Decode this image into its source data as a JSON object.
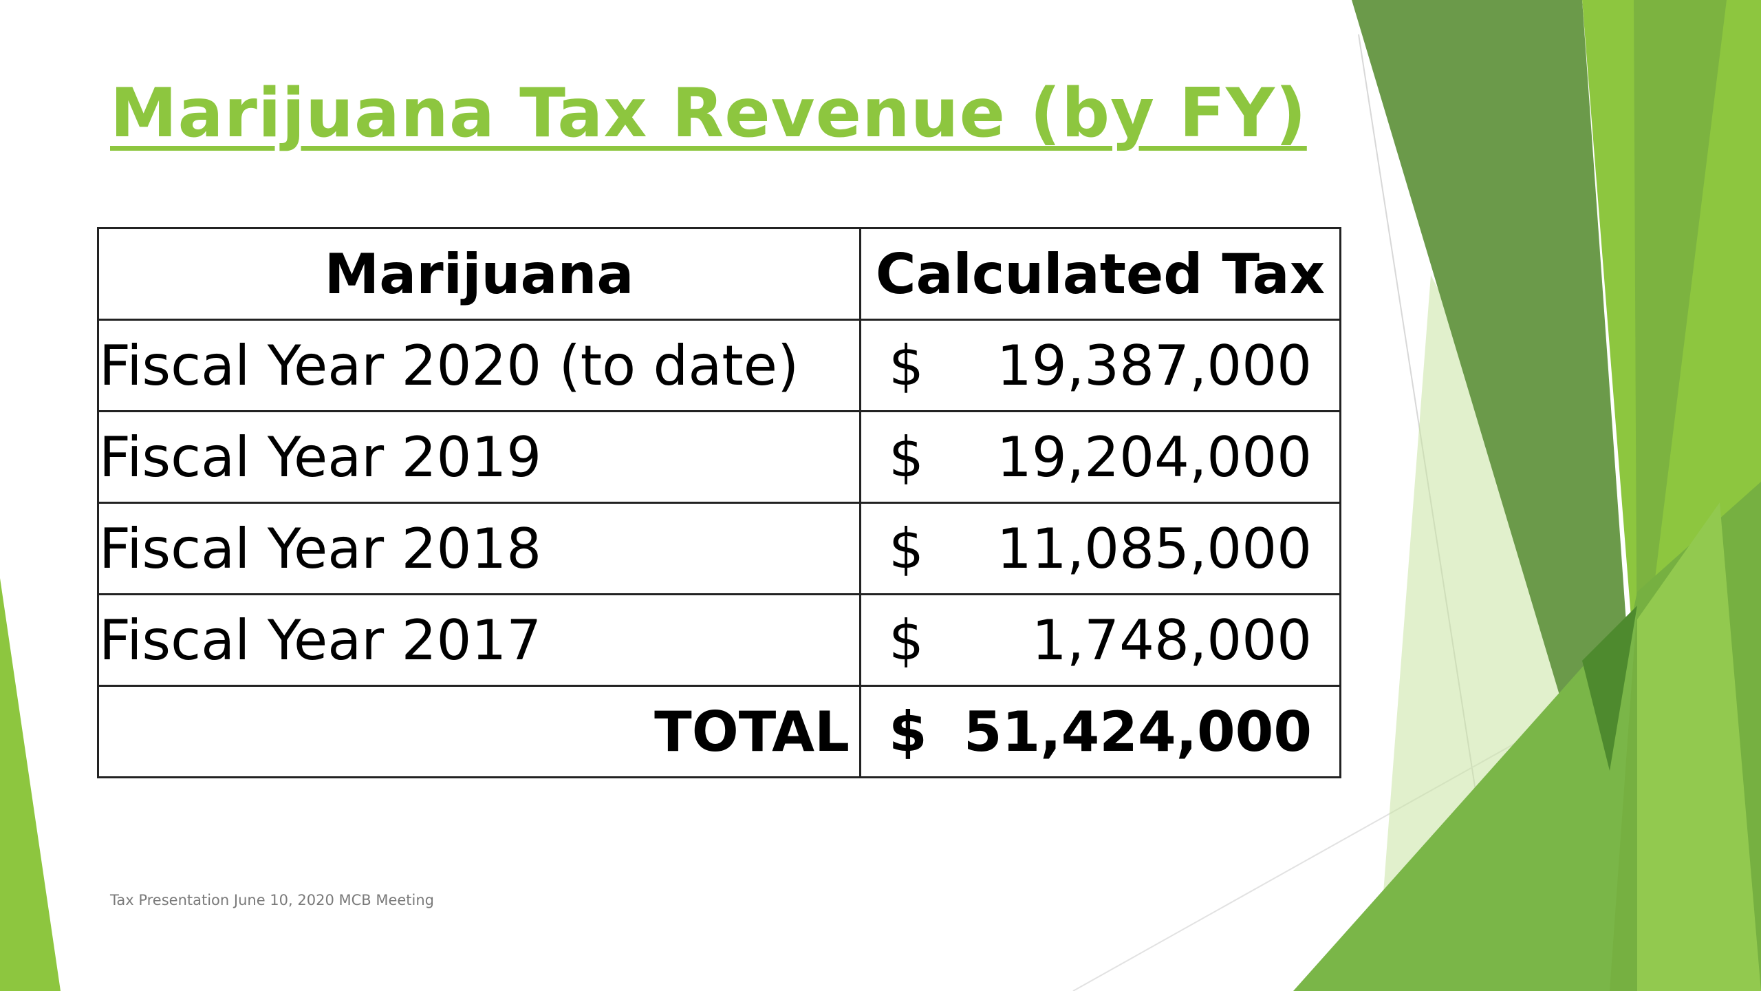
{
  "slide": {
    "title": "Marijuana Tax Revenue (by FY)",
    "footer": "Tax Presentation June 10, 2020 MCB Meeting"
  },
  "table": {
    "headers": [
      "Marijuana",
      "Calculated Tax"
    ],
    "rows": [
      {
        "label": "Fiscal Year 2020 (to date)",
        "currency": "$",
        "amount": "19,387,000"
      },
      {
        "label": "Fiscal Year 2019",
        "currency": "$",
        "amount": "19,204,000"
      },
      {
        "label": "Fiscal Year 2018",
        "currency": "$",
        "amount": "11,085,000"
      },
      {
        "label": "Fiscal Year 2017",
        "currency": "$",
        "amount": "1,748,000"
      }
    ],
    "total": {
      "label": "TOTAL",
      "currency": "$",
      "amount": "51,424,000"
    }
  },
  "colors": {
    "title": "#8dc63f",
    "decoration_dark": "#6b9a4a",
    "decoration_bright": "#8dc63f",
    "decoration_light": "#c9e3a2"
  }
}
